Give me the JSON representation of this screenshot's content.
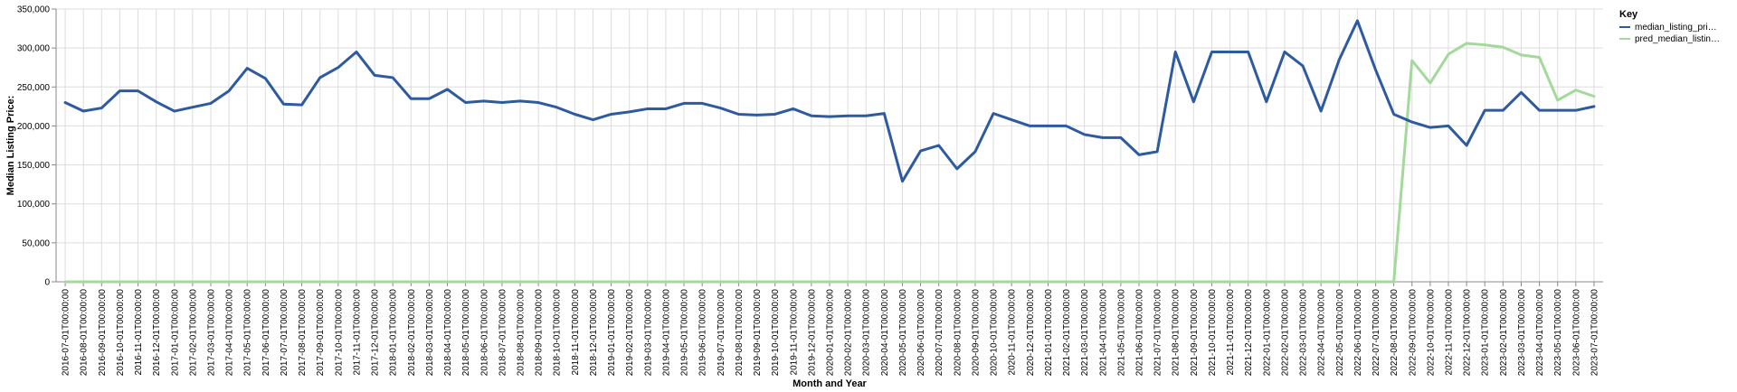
{
  "chart_data": {
    "type": "line",
    "xlabel": "Month and Year",
    "ylabel": "Median Listing Price:",
    "ylim": [
      0,
      350000
    ],
    "yticks": [
      "0",
      "50,000",
      "100,000",
      "150,000",
      "200,000",
      "250,000",
      "300,000",
      "350,000"
    ],
    "grid": true,
    "legend": {
      "title": "Key",
      "position": "top-right"
    },
    "x": [
      "2016-07-01T00:00:00",
      "2016-08-01T00:00:00",
      "2016-09-01T00:00:00",
      "2016-10-01T00:00:00",
      "2016-11-01T00:00:00",
      "2016-12-01T00:00:00",
      "2017-01-01T00:00:00",
      "2017-02-01T00:00:00",
      "2017-03-01T00:00:00",
      "2017-04-01T00:00:00",
      "2017-05-01T00:00:00",
      "2017-06-01T00:00:00",
      "2017-07-01T00:00:00",
      "2017-08-01T00:00:00",
      "2017-09-01T00:00:00",
      "2017-10-01T00:00:00",
      "2017-11-01T00:00:00",
      "2017-12-01T00:00:00",
      "2018-01-01T00:00:00",
      "2018-02-01T00:00:00",
      "2018-03-01T00:00:00",
      "2018-04-01T00:00:00",
      "2018-05-01T00:00:00",
      "2018-06-01T00:00:00",
      "2018-07-01T00:00:00",
      "2018-08-01T00:00:00",
      "2018-09-01T00:00:00",
      "2018-10-01T00:00:00",
      "2018-11-01T00:00:00",
      "2018-12-01T00:00:00",
      "2019-01-01T00:00:00",
      "2019-02-01T00:00:00",
      "2019-03-01T00:00:00",
      "2019-04-01T00:00:00",
      "2019-05-01T00:00:00",
      "2019-06-01T00:00:00",
      "2019-07-01T00:00:00",
      "2019-08-01T00:00:00",
      "2019-09-01T00:00:00",
      "2019-10-01T00:00:00",
      "2019-11-01T00:00:00",
      "2019-12-01T00:00:00",
      "2020-01-01T00:00:00",
      "2020-02-01T00:00:00",
      "2020-03-01T00:00:00",
      "2020-04-01T00:00:00",
      "2020-05-01T00:00:00",
      "2020-06-01T00:00:00",
      "2020-07-01T00:00:00",
      "2020-08-01T00:00:00",
      "2020-09-01T00:00:00",
      "2020-10-01T00:00:00",
      "2020-11-01T00:00:00",
      "2020-12-01T00:00:00",
      "2021-01-01T00:00:00",
      "2021-02-01T00:00:00",
      "2021-03-01T00:00:00",
      "2021-04-01T00:00:00",
      "2021-05-01T00:00:00",
      "2021-06-01T00:00:00",
      "2021-07-01T00:00:00",
      "2021-08-01T00:00:00",
      "2021-09-01T00:00:00",
      "2021-10-01T00:00:00",
      "2021-11-01T00:00:00",
      "2021-12-01T00:00:00",
      "2022-01-01T00:00:00",
      "2022-02-01T00:00:00",
      "2022-03-01T00:00:00",
      "2022-04-01T00:00:00",
      "2022-05-01T00:00:00",
      "2022-06-01T00:00:00",
      "2022-07-01T00:00:00",
      "2022-08-01T00:00:00",
      "2022-09-01T00:00:00",
      "2022-10-01T00:00:00",
      "2022-11-01T00:00:00",
      "2022-12-01T00:00:00",
      "2023-01-01T00:00:00",
      "2023-02-01T00:00:00",
      "2023-03-01T00:00:00",
      "2023-04-01T00:00:00",
      "2023-05-01T00:00:00",
      "2023-06-01T00:00:00",
      "2023-07-01T00:00:00"
    ],
    "series": [
      {
        "name": "median_listing_pri…",
        "color": "#2d5aa0",
        "values": [
          230000,
          219000,
          223000,
          245000,
          245000,
          231000,
          219000,
          224000,
          229000,
          245000,
          274000,
          261000,
          228000,
          227000,
          262000,
          275000,
          295000,
          265000,
          262000,
          235000,
          235000,
          247000,
          230000,
          232000,
          230000,
          232000,
          230000,
          224000,
          215000,
          208000,
          215000,
          218000,
          222000,
          222000,
          229000,
          229000,
          223000,
          215000,
          214000,
          215000,
          222000,
          213000,
          212000,
          213000,
          213000,
          216000,
          129000,
          168000,
          175000,
          145000,
          167000,
          216000,
          208000,
          200000,
          200000,
          200000,
          189000,
          185000,
          185000,
          163000,
          167000,
          295000,
          231000,
          295000,
          295000,
          295000,
          231000,
          295000,
          277000,
          219000,
          285000,
          335000,
          272000,
          215000,
          205000,
          198000,
          200000,
          175000,
          220000,
          220000,
          243000,
          220000,
          220000,
          220000,
          225000
        ]
      },
      {
        "name": "pred_median_listin…",
        "color": "#a3d99a",
        "values": [
          0,
          0,
          0,
          0,
          0,
          0,
          0,
          0,
          0,
          0,
          0,
          0,
          0,
          0,
          0,
          0,
          0,
          0,
          0,
          0,
          0,
          0,
          0,
          0,
          0,
          0,
          0,
          0,
          0,
          0,
          0,
          0,
          0,
          0,
          0,
          0,
          0,
          0,
          0,
          0,
          0,
          0,
          0,
          0,
          0,
          0,
          0,
          0,
          0,
          0,
          0,
          0,
          0,
          0,
          0,
          0,
          0,
          0,
          0,
          0,
          0,
          0,
          0,
          0,
          0,
          0,
          0,
          0,
          0,
          0,
          0,
          0,
          0,
          0,
          284000,
          255000,
          292000,
          306000,
          304000,
          301000,
          291000,
          288000,
          233000,
          246000,
          238000
        ]
      }
    ]
  }
}
